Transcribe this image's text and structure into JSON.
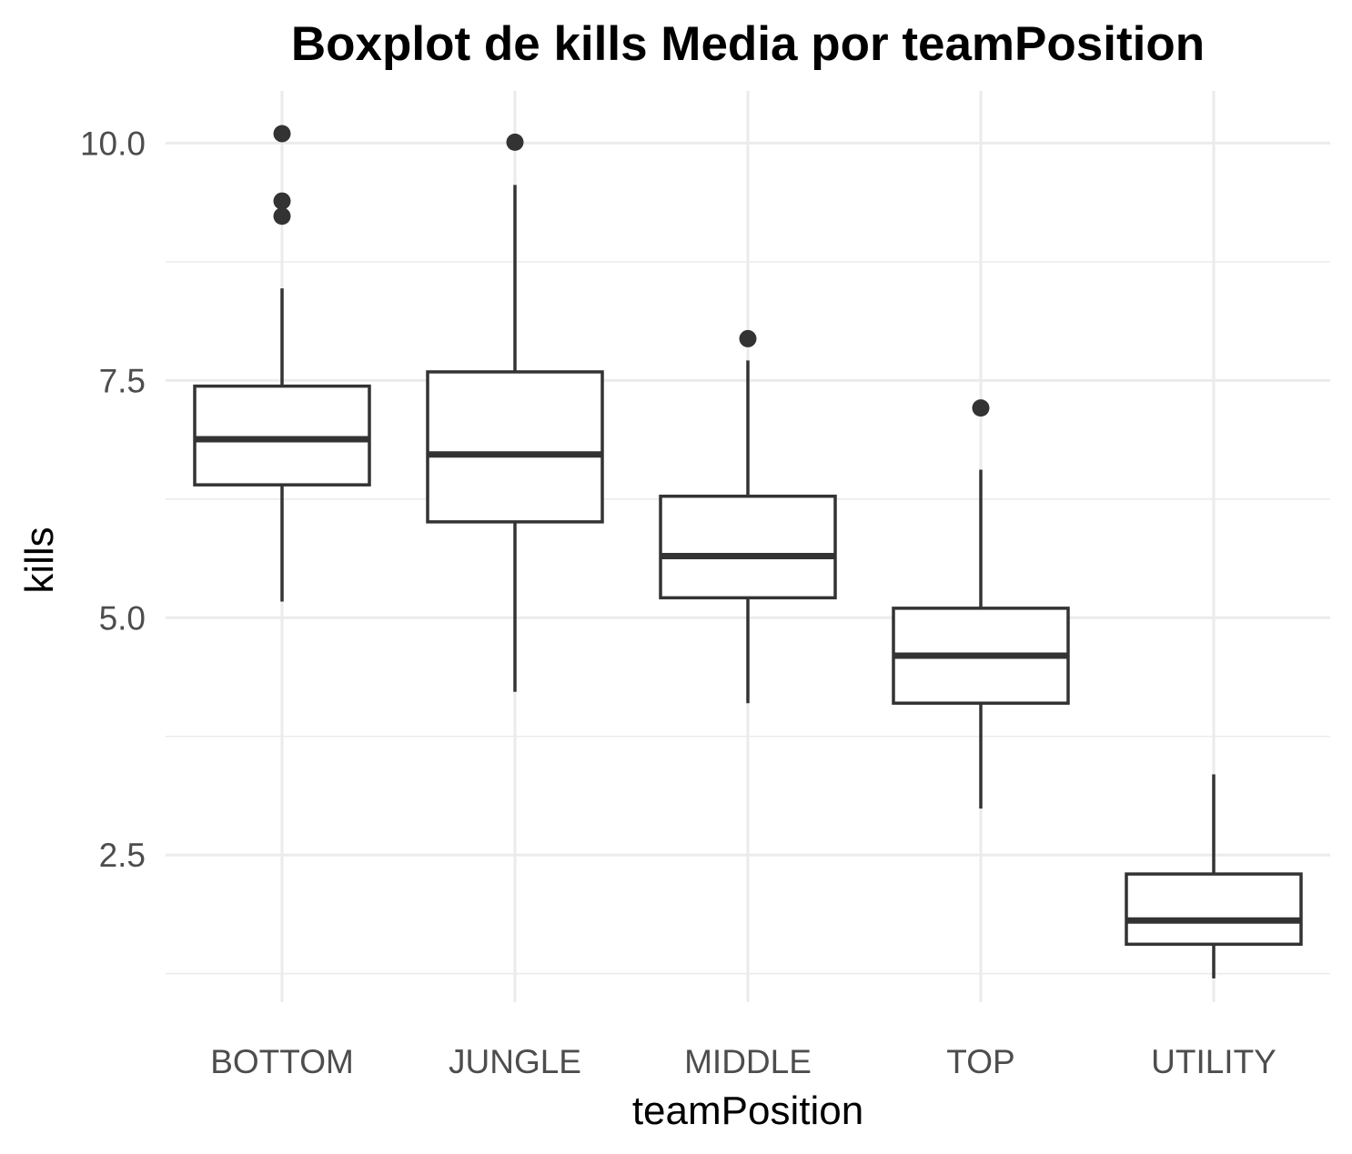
{
  "chart_data": {
    "type": "boxplot",
    "title": "Boxplot de kills Media por teamPosition",
    "xlabel": "teamPosition",
    "ylabel": "kills",
    "categories": [
      "BOTTOM",
      "JUNGLE",
      "MIDDLE",
      "TOP",
      "UTILITY"
    ],
    "ylim": [
      0.95,
      10.55
    ],
    "y_ticks": [
      {
        "value": 2.5,
        "label": "2.5"
      },
      {
        "value": 5.0,
        "label": "5.0"
      },
      {
        "value": 7.5,
        "label": "7.5"
      },
      {
        "value": 10.0,
        "label": "10.0"
      }
    ],
    "y_minor_ticks": [
      1.25,
      3.75,
      6.25,
      8.75
    ],
    "grid": true,
    "boxes": [
      {
        "category": "BOTTOM",
        "whisker_low": 5.17,
        "q1": 6.4,
        "median": 6.88,
        "q3": 7.44,
        "whisker_high": 8.47,
        "outliers": [
          9.23,
          9.39,
          10.1
        ]
      },
      {
        "category": "JUNGLE",
        "whisker_low": 4.22,
        "q1": 6.01,
        "median": 6.72,
        "q3": 7.59,
        "whisker_high": 9.56,
        "outliers": [
          10.01
        ]
      },
      {
        "category": "MIDDLE",
        "whisker_low": 4.1,
        "q1": 5.21,
        "median": 5.65,
        "q3": 6.28,
        "whisker_high": 7.71,
        "outliers": [
          7.94
        ]
      },
      {
        "category": "TOP",
        "whisker_low": 2.99,
        "q1": 4.1,
        "median": 4.6,
        "q3": 5.1,
        "whisker_high": 6.56,
        "outliers": [
          7.21
        ]
      },
      {
        "category": "UTILITY",
        "whisker_low": 1.2,
        "q1": 1.56,
        "median": 1.81,
        "q3": 2.3,
        "whisker_high": 3.35,
        "outliers": []
      }
    ],
    "colors": {
      "box_stroke": "#333333",
      "box_fill": "#ffffff",
      "grid": "#ebebeb",
      "tick_text": "#4d4d4d",
      "title_text": "#000000"
    }
  }
}
